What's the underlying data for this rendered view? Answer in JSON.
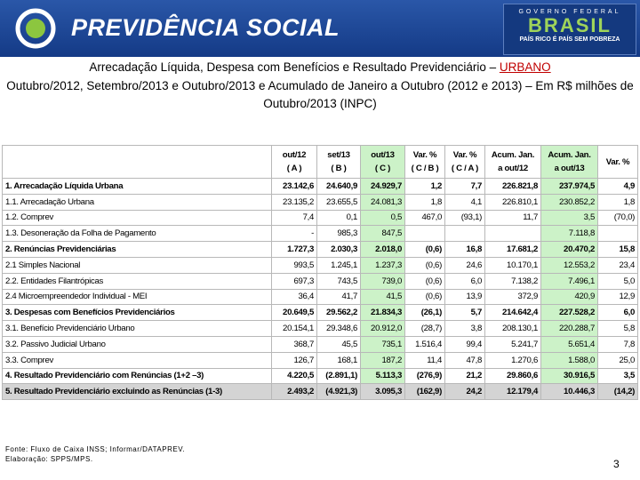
{
  "header": {
    "brand": "PREVIDÊNCIA SOCIAL",
    "gov": "GOVERNO FEDERAL",
    "country": "BRASIL",
    "slogan": "PAÍS RICO É PAÍS SEM POBREZA"
  },
  "title": {
    "main": "Arrecadação Líquida, Despesa com Benefícios e Resultado Previdenciário – ",
    "highlight": "URBANO",
    "subtitle": "Outubro/2012, Setembro/2013 e Outubro/2013 e Acumulado de Janeiro a Outubro (2012 e 2013) – Em R$ milhões de Outubro/2013 (INPC)"
  },
  "table": {
    "columns": [
      [
        "out/12",
        "( A )"
      ],
      [
        "set/13",
        "( B )"
      ],
      [
        "out/13",
        "( C )"
      ],
      [
        "Var. %",
        "( C / B )"
      ],
      [
        "Var. %",
        "( C / A )"
      ],
      [
        "Acum. Jan.",
        "a out/12"
      ],
      [
        "Acum. Jan.",
        "a out/13"
      ],
      [
        "Var. %"
      ]
    ],
    "rows": [
      {
        "label": "1. Arrecadação Líquida Urbana",
        "bold": true,
        "cells": [
          "23.142,6",
          "24.640,9",
          "24.929,7",
          "1,2",
          "7,7",
          "226.821,8",
          "237.974,5",
          "4,9"
        ]
      },
      {
        "label": "1.1. Arrecadação Urbana",
        "cells": [
          "23.135,2",
          "23.655,5",
          "24.081,3",
          "1,8",
          "4,1",
          "226.810,1",
          "230.852,2",
          "1,8"
        ]
      },
      {
        "label": "1.2. Comprev",
        "cells": [
          "7,4",
          "0,1",
          "0,5",
          "467,0",
          "(93,1)",
          "11,7",
          "3,5",
          "(70,0)"
        ]
      },
      {
        "label": "1.3. Desoneração da Folha de Pagamento",
        "cells": [
          "-",
          "985,3",
          "847,5",
          null,
          null,
          null,
          "7.118,8",
          null
        ]
      },
      {
        "label": "2. Renúncias Previdenciárias",
        "bold": true,
        "cells": [
          "1.727,3",
          "2.030,3",
          "2.018,0",
          "(0,6)",
          "16,8",
          "17.681,2",
          "20.470,2",
          "15,8"
        ]
      },
      {
        "label": "2.1 Simples Nacional",
        "cells": [
          "993,5",
          "1.245,1",
          "1.237,3",
          "(0,6)",
          "24,6",
          "10.170,1",
          "12.553,2",
          "23,4"
        ]
      },
      {
        "label": "2.2. Entidades Filantrópicas",
        "cells": [
          "697,3",
          "743,5",
          "739,0",
          "(0,6)",
          "6,0",
          "7.138,2",
          "7.496,1",
          "5,0"
        ]
      },
      {
        "label": "2.4 Microempreendedor Individual - MEI",
        "cells": [
          "36,4",
          "41,7",
          "41,5",
          "(0,6)",
          "13,9",
          "372,9",
          "420,9",
          "12,9"
        ]
      },
      {
        "label": "3. Despesas com Benefícios Previdenciários",
        "bold": true,
        "cells": [
          "20.649,5",
          "29.562,2",
          "21.834,3",
          "(26,1)",
          "5,7",
          "214.642,4",
          "227.528,2",
          "6,0"
        ]
      },
      {
        "label": "3.1.  Benefício Previdenciário Urbano",
        "cells": [
          "20.154,1",
          "29.348,6",
          "20.912,0",
          "(28,7)",
          "3,8",
          "208.130,1",
          "220.288,7",
          "5,8"
        ]
      },
      {
        "label": "3.2. Passivo Judicial Urbano",
        "cells": [
          "368,7",
          "45,5",
          "735,1",
          "1.516,4",
          "99,4",
          "5.241,7",
          "5.651,4",
          "7,8"
        ]
      },
      {
        "label": "3.3.  Comprev",
        "cells": [
          "126,7",
          "168,1",
          "187,2",
          "11,4",
          "47,8",
          "1.270,6",
          "1.588,0",
          "25,0"
        ]
      },
      {
        "label": "4. Resultado Previdenciário com Renúncias (1+2 –3)",
        "bold": true,
        "cells": [
          "4.220,5",
          "(2.891,1)",
          "5.113,3",
          "(276,9)",
          "21,2",
          "29.860,6",
          "30.916,5",
          "3,5"
        ]
      },
      {
        "label": "5. Resultado Previdenciário excluindo as Renúncias (1-3)",
        "bold": true,
        "shaded": true,
        "cells": [
          "2.493,2",
          "(4.921,3)",
          "3.095,3",
          "(162,9)",
          "24,2",
          "12.179,4",
          "10.446,3",
          "(14,2)"
        ]
      }
    ]
  },
  "footer": {
    "source": "Fonte: Fluxo de Caixa INSS; Informar/DATAPREV.",
    "credit": "Elaboração: SPPS/MPS.",
    "page": "3"
  }
}
